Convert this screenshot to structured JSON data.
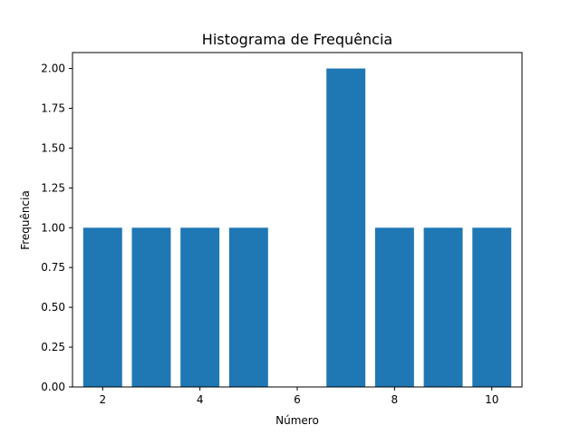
{
  "chart_data": {
    "type": "bar",
    "title": "Histograma de Frequência",
    "xlabel": "Número",
    "ylabel": "Frequência",
    "x": [
      2,
      3,
      4,
      5,
      7,
      8,
      9,
      10
    ],
    "values": [
      1,
      1,
      1,
      1,
      2,
      1,
      1,
      1
    ],
    "bar_width": 0.8,
    "xlim": [
      1.38,
      10.62
    ],
    "ylim": [
      0,
      2.1
    ],
    "x_ticks": [
      2,
      4,
      6,
      8,
      10
    ],
    "x_tick_labels": [
      "2",
      "4",
      "6",
      "8",
      "10"
    ],
    "y_ticks": [
      0,
      0.25,
      0.5,
      0.75,
      1.0,
      1.25,
      1.5,
      1.75,
      2.0
    ],
    "y_tick_labels": [
      "0.00",
      "0.25",
      "0.50",
      "0.75",
      "1.00",
      "1.25",
      "1.50",
      "1.75",
      "2.00"
    ],
    "grid": false,
    "legend": "none",
    "bar_color": "#1f77b4"
  }
}
